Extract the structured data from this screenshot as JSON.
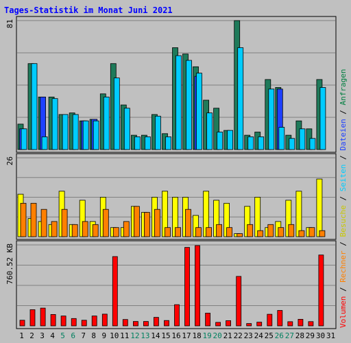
{
  "chart_data": {
    "title": "Tages-Statistik im Monat Juni 2021",
    "days": [
      "1",
      "2",
      "3",
      "4",
      "5",
      "6",
      "7",
      "8",
      "9",
      "10",
      "11",
      "12",
      "13",
      "14",
      "15",
      "16",
      "17",
      "18",
      "19",
      "20",
      "21",
      "22",
      "23",
      "24",
      "25",
      "26",
      "27",
      "28",
      "29",
      "30",
      "31"
    ],
    "weekend_days": [
      "5",
      "6",
      "12",
      "13",
      "19",
      "20",
      "26",
      "27"
    ],
    "panels": [
      {
        "type": "bar",
        "axis_label": "81",
        "ylim": [
          0,
          81
        ],
        "series": [
          {
            "name": "Anfragen",
            "color": "#1f7a5a",
            "values": [
              16,
              54,
              33,
              33,
              22,
              23,
              18,
              19,
              35,
              54,
              28,
              9,
              9,
              22,
              10,
              64,
              60,
              52,
              31,
              26,
              12,
              81,
              9,
              11,
              44,
              39,
              9,
              18,
              13,
              44,
              0
            ]
          },
          {
            "name": "Dateien",
            "color": "#1e40ff",
            "values": [
              13,
              0,
              33,
              0,
              0,
              0,
              18,
              19,
              0,
              0,
              0,
              0,
              0,
              0,
              0,
              0,
              0,
              46,
              0,
              0,
              0,
              0,
              0,
              0,
              0,
              38,
              0,
              0,
              0,
              0,
              0
            ]
          },
          {
            "name": "Seiten",
            "color": "#00ccff",
            "values": [
              13,
              54,
              8,
              32,
              22,
              22,
              18,
              18,
              33,
              45,
              26,
              8,
              8,
              21,
              8,
              59,
              56,
              48,
              23,
              11,
              12,
              64,
              8,
              8,
              38,
              14,
              7,
              13,
              7,
              39,
              0
            ]
          }
        ],
        "legend": [
          "Anfragen",
          "Dateien",
          "Seiten"
        ],
        "legend_colors": [
          "#007f40",
          "#1e40ff",
          "#00ccff"
        ]
      },
      {
        "type": "bar",
        "axis_label": "26",
        "ylim": [
          0,
          26
        ],
        "series": [
          {
            "name": "Besuche",
            "color": "#ffff00",
            "values": [
              14,
              6,
              5,
              4,
              15,
              4,
              12,
              5,
              13,
              3,
              3,
              10,
              8,
              13,
              15,
              13,
              13,
              7,
              15,
              12,
              11,
              1,
              10,
              13,
              3,
              5,
              12,
              15,
              3,
              19,
              0
            ]
          },
          {
            "name": "Rechner",
            "color": "#ff8000",
            "values": [
              11,
              11,
              9,
              5,
              9,
              4,
              5,
              4,
              9,
              3,
              5,
              10,
              8,
              9,
              3,
              3,
              9,
              3,
              3,
              4,
              3,
              1,
              4,
              2,
              4,
              3,
              4,
              2,
              3,
              2,
              0
            ]
          }
        ],
        "legend": [
          "Besuche",
          "Rechner"
        ],
        "legend_colors": [
          "#c8c800",
          "#ff8000"
        ]
      },
      {
        "type": "bar",
        "axis_label": "760.52 KB",
        "ylim": [
          0,
          760.52
        ],
        "series": [
          {
            "name": "Volumen",
            "color": "#ff0000",
            "values": [
              53,
              152,
              167,
              107,
              93,
              69,
              53,
              93,
              110,
              651,
              60,
              41,
              41,
              80,
              50,
              199,
              737,
              754,
              120,
              33,
              49,
              465,
              22,
              35,
              109,
              145,
              39,
              62,
              40,
              666,
              0
            ]
          }
        ],
        "legend": [
          "Volumen"
        ],
        "legend_colors": [
          "#ff0000"
        ]
      }
    ],
    "legend_separator": " / "
  },
  "colors": {
    "background": "#c0c0c0",
    "plot_background": "#c0c0c0",
    "grid": "#808080",
    "title": "#0000ff",
    "weekend_label": "#00805f",
    "weekday_label": "#000000"
  }
}
